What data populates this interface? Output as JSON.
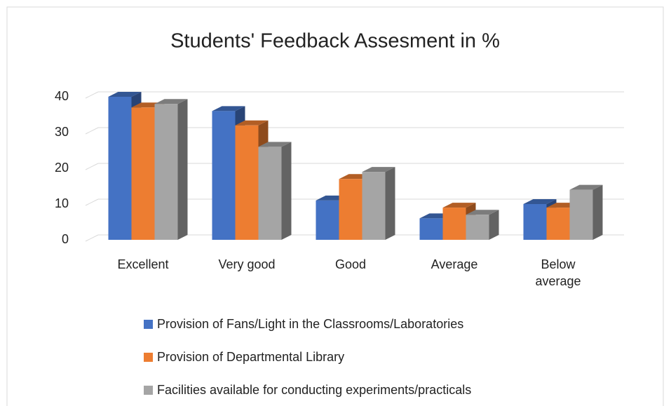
{
  "chart_data": {
    "type": "bar3d",
    "title": "Students' Feedback Assesment in %",
    "categories": [
      "Excellent",
      "Very good",
      "Good",
      "Average",
      "Below average"
    ],
    "series": [
      {
        "name": "Provision of Fans/Light in the Classrooms/Laboratories",
        "color": "#4472c4",
        "values": [
          40,
          36,
          11,
          6,
          10
        ]
      },
      {
        "name": "Provision of Departmental Library",
        "color": "#ed7d31",
        "values": [
          37,
          32,
          17,
          9,
          9
        ]
      },
      {
        "name": "Facilities available for conducting experiments/practicals",
        "color": "#a5a5a5",
        "values": [
          38,
          26,
          19,
          7,
          14
        ]
      }
    ],
    "ylim": [
      0,
      40
    ],
    "yticks": [
      0,
      10,
      20,
      30,
      40
    ],
    "grid": true,
    "legend": "bottom"
  }
}
